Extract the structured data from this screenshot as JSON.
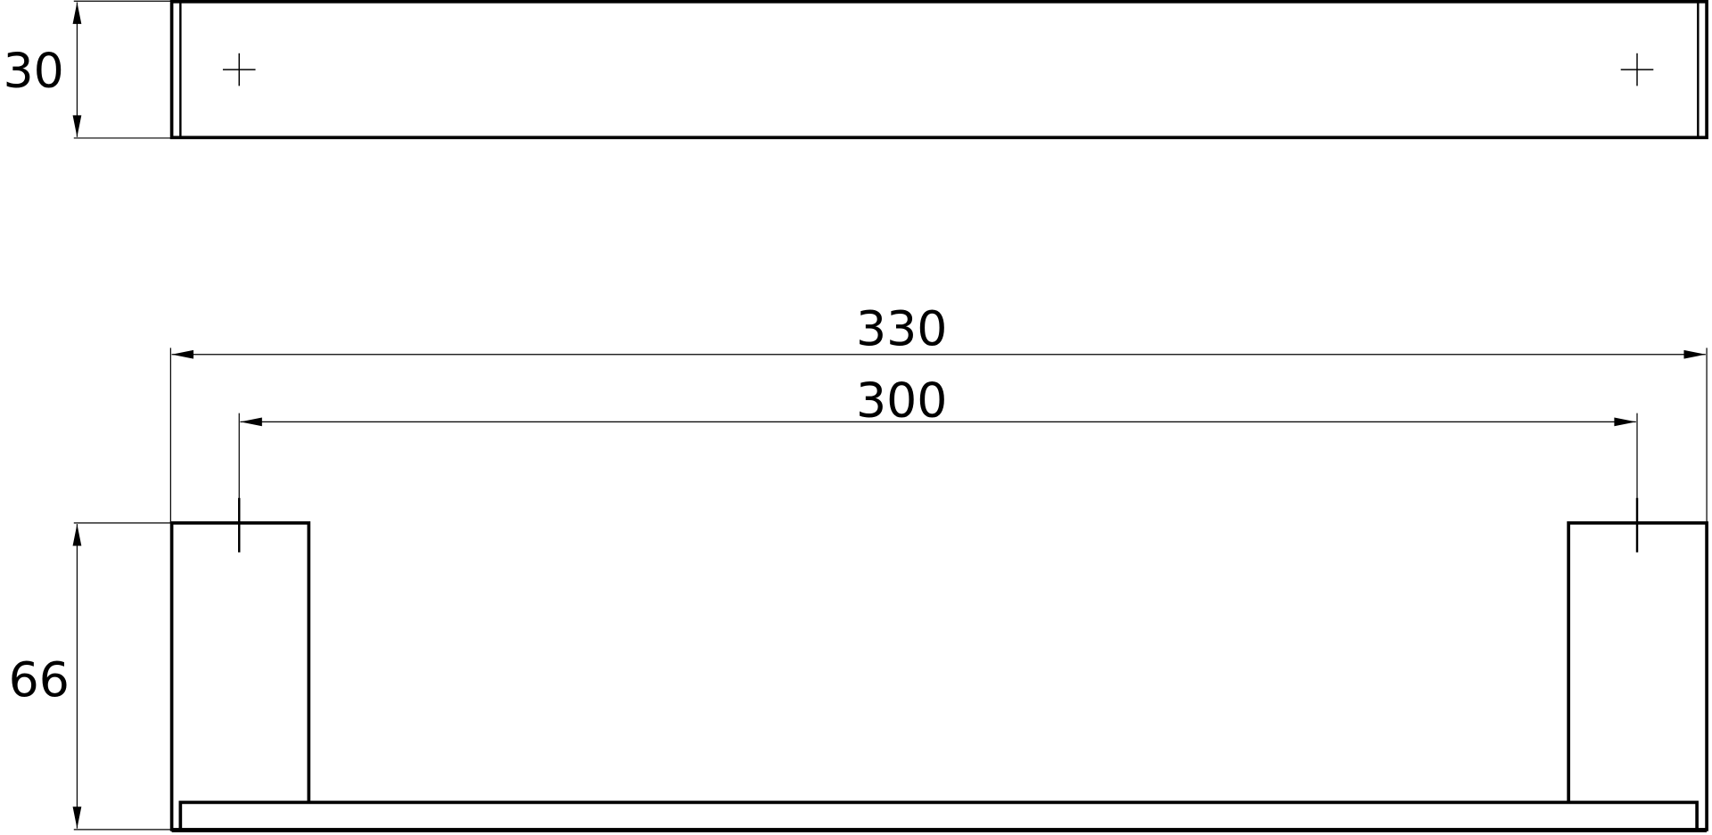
{
  "drawing": {
    "top_view": {
      "height_label": "30"
    },
    "front_view": {
      "overall_width_label": "330",
      "hole_spacing_label": "300",
      "height_label": "66"
    },
    "line_color": "#000000",
    "background": "#ffffff"
  }
}
